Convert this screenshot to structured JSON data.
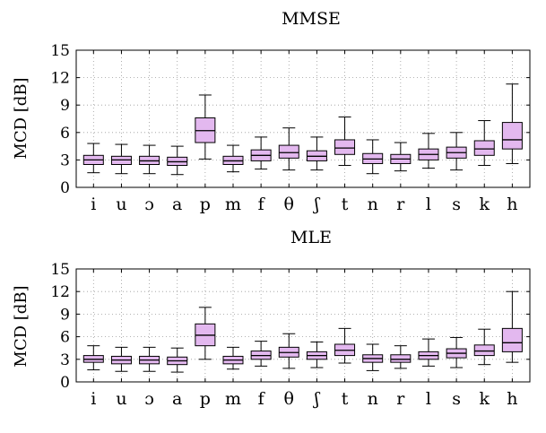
{
  "chart_data": [
    {
      "type": "box",
      "title": "MMSE",
      "ylabel": "MCD [dB]",
      "ylim": [
        0,
        15
      ],
      "yticks": [
        0,
        3,
        6,
        9,
        12,
        15
      ],
      "grid": true,
      "colors": {
        "box": "#e3b8ef",
        "edge": "#000000"
      },
      "categories": [
        "i",
        "u",
        "ɔ",
        "a",
        "p",
        "m",
        "f",
        "θ",
        "ʃ",
        "t",
        "n",
        "r",
        "l",
        "s",
        "k",
        "h"
      ],
      "boxes": [
        {
          "min": 1.6,
          "q1": 2.5,
          "median": 3.0,
          "q3": 3.5,
          "max": 4.8
        },
        {
          "min": 1.5,
          "q1": 2.5,
          "median": 3.0,
          "q3": 3.4,
          "max": 4.7
        },
        {
          "min": 1.5,
          "q1": 2.5,
          "median": 2.9,
          "q3": 3.4,
          "max": 4.6
        },
        {
          "min": 1.4,
          "q1": 2.4,
          "median": 2.8,
          "q3": 3.3,
          "max": 4.5
        },
        {
          "min": 3.1,
          "q1": 4.9,
          "median": 6.2,
          "q3": 7.6,
          "max": 10.1
        },
        {
          "min": 1.7,
          "q1": 2.5,
          "median": 2.9,
          "q3": 3.4,
          "max": 4.6
        },
        {
          "min": 2.0,
          "q1": 2.9,
          "median": 3.5,
          "q3": 4.1,
          "max": 5.5
        },
        {
          "min": 1.9,
          "q1": 3.2,
          "median": 3.8,
          "q3": 4.6,
          "max": 6.5
        },
        {
          "min": 1.9,
          "q1": 2.9,
          "median": 3.4,
          "q3": 4.0,
          "max": 5.5
        },
        {
          "min": 2.4,
          "q1": 3.6,
          "median": 4.3,
          "q3": 5.2,
          "max": 7.7
        },
        {
          "min": 1.5,
          "q1": 2.6,
          "median": 3.1,
          "q3": 3.7,
          "max": 5.2
        },
        {
          "min": 1.8,
          "q1": 2.6,
          "median": 3.1,
          "q3": 3.6,
          "max": 4.9
        },
        {
          "min": 2.1,
          "q1": 3.0,
          "median": 3.6,
          "q3": 4.2,
          "max": 5.9
        },
        {
          "min": 1.9,
          "q1": 3.2,
          "median": 3.8,
          "q3": 4.4,
          "max": 6.0
        },
        {
          "min": 2.4,
          "q1": 3.5,
          "median": 4.2,
          "q3": 5.1,
          "max": 7.3
        },
        {
          "min": 2.6,
          "q1": 4.2,
          "median": 5.2,
          "q3": 7.1,
          "max": 11.3
        }
      ]
    },
    {
      "type": "box",
      "title": "MLE",
      "ylabel": "MCD [dB]",
      "ylim": [
        0,
        15
      ],
      "yticks": [
        0,
        3,
        6,
        9,
        12,
        15
      ],
      "grid": true,
      "colors": {
        "box": "#e3b8ef",
        "edge": "#000000"
      },
      "categories": [
        "i",
        "u",
        "ɔ",
        "a",
        "p",
        "m",
        "f",
        "θ",
        "ʃ",
        "t",
        "n",
        "r",
        "l",
        "s",
        "k",
        "h"
      ],
      "boxes": [
        {
          "min": 1.6,
          "q1": 2.6,
          "median": 3.0,
          "q3": 3.5,
          "max": 4.8
        },
        {
          "min": 1.4,
          "q1": 2.4,
          "median": 2.9,
          "q3": 3.4,
          "max": 4.6
        },
        {
          "min": 1.4,
          "q1": 2.4,
          "median": 2.9,
          "q3": 3.4,
          "max": 4.6
        },
        {
          "min": 1.3,
          "q1": 2.3,
          "median": 2.8,
          "q3": 3.3,
          "max": 4.5
        },
        {
          "min": 3.0,
          "q1": 4.8,
          "median": 6.2,
          "q3": 7.7,
          "max": 9.9
        },
        {
          "min": 1.7,
          "q1": 2.4,
          "median": 2.9,
          "q3": 3.4,
          "max": 4.6
        },
        {
          "min": 2.1,
          "q1": 3.0,
          "median": 3.5,
          "q3": 4.1,
          "max": 5.4
        },
        {
          "min": 1.8,
          "q1": 3.3,
          "median": 3.9,
          "q3": 4.6,
          "max": 6.4
        },
        {
          "min": 1.9,
          "q1": 3.0,
          "median": 3.5,
          "q3": 4.0,
          "max": 5.3
        },
        {
          "min": 2.5,
          "q1": 3.5,
          "median": 4.2,
          "q3": 5.0,
          "max": 7.1
        },
        {
          "min": 1.5,
          "q1": 2.6,
          "median": 3.1,
          "q3": 3.6,
          "max": 5.0
        },
        {
          "min": 1.8,
          "q1": 2.6,
          "median": 3.0,
          "q3": 3.6,
          "max": 4.8
        },
        {
          "min": 2.1,
          "q1": 3.0,
          "median": 3.5,
          "q3": 4.0,
          "max": 5.7
        },
        {
          "min": 1.9,
          "q1": 3.2,
          "median": 3.8,
          "q3": 4.4,
          "max": 5.9
        },
        {
          "min": 2.3,
          "q1": 3.5,
          "median": 4.1,
          "q3": 4.9,
          "max": 7.0
        },
        {
          "min": 2.6,
          "q1": 4.0,
          "median": 5.2,
          "q3": 7.1,
          "max": 12.0
        }
      ]
    }
  ]
}
